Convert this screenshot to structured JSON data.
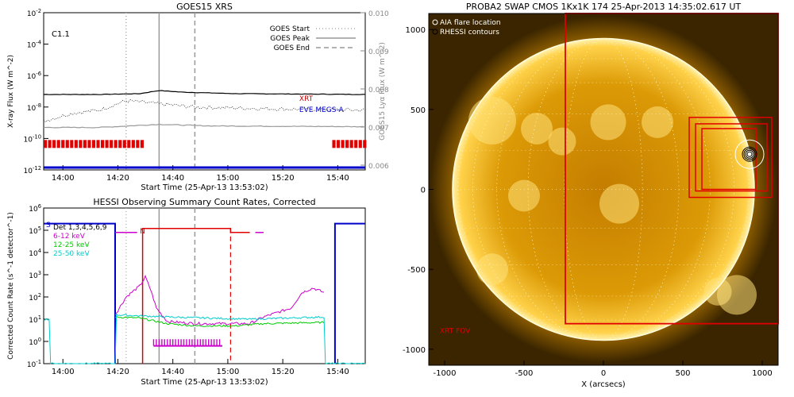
{
  "chart_data": [
    {
      "type": "line",
      "title": "GOES15 XRS",
      "xlabel": "Start Time (25-Apr-13 13:53:02)",
      "ylabel": "X-ray Flux (W m^-2)",
      "y2label": "GOES15 Lyα Flux (W m^-2)",
      "flare_class": "C1.1",
      "x_ticks": [
        "14:00",
        "14:20",
        "14:40",
        "15:00",
        "15:20",
        "15:40"
      ],
      "y_ticks": [
        "10^-2",
        "10^-4",
        "10^-6",
        "10^-8",
        "10^-10",
        "10^-12"
      ],
      "y2_ticks": [
        "0.010",
        "0.009",
        "0.008",
        "0.007",
        "0.006"
      ],
      "y_scale": "log",
      "ylim_exp": [
        -12,
        -2
      ],
      "y2lim": [
        0.006,
        0.01
      ],
      "xlim_min": [
        0,
        117
      ],
      "legend": [
        {
          "label": "GOES Start",
          "style": "dotted",
          "color": "#aaaaaa",
          "t_min": 30
        },
        {
          "label": "GOES Peak",
          "style": "solid",
          "color": "#999999",
          "t_min": 42
        },
        {
          "label": "GOES End",
          "style": "dashed",
          "color": "#999999",
          "t_min": 55
        }
      ],
      "series": [
        {
          "name": "XRT",
          "color": "#cc0000"
        },
        {
          "name": "EVE MEGS-A",
          "color": "#0000cc"
        }
      ],
      "black_long_exp": [
        [
          0,
          -7.2
        ],
        [
          20,
          -7.2
        ],
        [
          35,
          -7.15
        ],
        [
          42,
          -6.95
        ],
        [
          50,
          -7.05
        ],
        [
          70,
          -7.15
        ],
        [
          117,
          -7.2
        ]
      ],
      "dotted_lya_exp": [
        [
          0,
          -8.9
        ],
        [
          10,
          -8.4
        ],
        [
          20,
          -8.2
        ],
        [
          30,
          -7.6
        ],
        [
          42,
          -7.8
        ],
        [
          55,
          -8.0
        ],
        [
          80,
          -8.1
        ],
        [
          117,
          -8.2
        ]
      ],
      "gray_short_exp": [
        [
          0,
          -9.3
        ],
        [
          20,
          -9.3
        ],
        [
          42,
          -9.1
        ],
        [
          60,
          -9.2
        ],
        [
          117,
          -9.25
        ]
      ],
      "red_xrt_blocks_min": [
        [
          0,
          36
        ],
        [
          105,
          117
        ]
      ],
      "blue_eve_exp": -11.85
    },
    {
      "type": "line",
      "title": "HESSI Observing Summary Count Rates, Corrected",
      "xlabel": "Start Time (25-Apr-13 13:53:02)",
      "ylabel": "Corrected Count Rate (s^-1 detector^-1)",
      "x_ticks": [
        "14:00",
        "14:20",
        "14:40",
        "15:00",
        "15:20",
        "15:40"
      ],
      "y_ticks": [
        "10^6",
        "10^5",
        "10^4",
        "10^3",
        "10^2",
        "10^1",
        "10^0",
        "10^-1"
      ],
      "y_scale": "log",
      "ylim_exp": [
        -1,
        6
      ],
      "flag_labels": [
        "S",
        "N"
      ],
      "legend": [
        {
          "label": "Det 1,3,4,5,6,9",
          "color": "#000000"
        },
        {
          "label": "6-12 keV",
          "color": "#cc00cc"
        },
        {
          "label": "12-25 keV",
          "color": "#00cc00"
        },
        {
          "label": "25-50 keV",
          "color": "#00cccc"
        }
      ],
      "series": [
        {
          "name": "6-12 keV",
          "color": "#cc00cc",
          "points_exp": [
            [
              26,
              1.2
            ],
            [
              30,
              2.0
            ],
            [
              35,
              2.5
            ],
            [
              37,
              2.9
            ],
            [
              39,
              2.3
            ],
            [
              41,
              1.5
            ],
            [
              45,
              0.9
            ],
            [
              55,
              0.8
            ],
            [
              75,
              0.8
            ],
            [
              80,
              1.1
            ],
            [
              90,
              1.5
            ],
            [
              94,
              2.2
            ],
            [
              98,
              2.4
            ],
            [
              102,
              2.2
            ]
          ]
        },
        {
          "name": "12-25 keV",
          "color": "#00cc00",
          "points_exp": [
            [
              26,
              1.1
            ],
            [
              35,
              1.05
            ],
            [
              45,
              0.8
            ],
            [
              55,
              0.7
            ],
            [
              70,
              0.7
            ],
            [
              80,
              0.8
            ],
            [
              100,
              0.85
            ],
            [
              102,
              0.85
            ]
          ]
        },
        {
          "name": "25-50 keV",
          "color": "#00cccc",
          "points_exp": [
            [
              0,
              1.0
            ],
            [
              2,
              1.0
            ],
            [
              2,
              -1
            ],
            [
              26,
              -1
            ],
            [
              26,
              1.2
            ],
            [
              45,
              1.1
            ],
            [
              75,
              1.0
            ],
            [
              102,
              1.1
            ],
            [
              102,
              -1
            ],
            [
              117,
              -1
            ]
          ]
        }
      ],
      "blue_level_exp": 5.3,
      "red_level_exp": 5.08,
      "magenta_level_exp": 4.9
    },
    {
      "type": "heatmap",
      "title": "PROBA2 SWAP CMOS 1Kx1K 174 25-Apr-2013 14:35:02.617 UT",
      "xlabel": "X (arcsecs)",
      "ylabel": "",
      "x_ticks": [
        -1000,
        -500,
        0,
        500,
        1000
      ],
      "y_ticks": [
        1000,
        500,
        0,
        -500,
        -1000
      ],
      "xlim": [
        -1100,
        1100
      ],
      "ylim": [
        -1100,
        1100
      ],
      "solar_radius_arcsec": 950,
      "legend": [
        {
          "label": "AIA flare location",
          "color": "#ffffff"
        },
        {
          "label": "RHESSI contours",
          "color": "#000000"
        }
      ],
      "flare_center_arcsec": [
        920,
        220
      ],
      "xrt_fov_label": "XRT FOV",
      "xrt_fov_box": [
        -240,
        -840,
        1100,
        1100
      ],
      "boxes": [
        [
          540,
          -50,
          1060,
          450
        ],
        [
          580,
          -10,
          1030,
          410
        ],
        [
          620,
          0,
          960,
          380
        ]
      ]
    }
  ]
}
